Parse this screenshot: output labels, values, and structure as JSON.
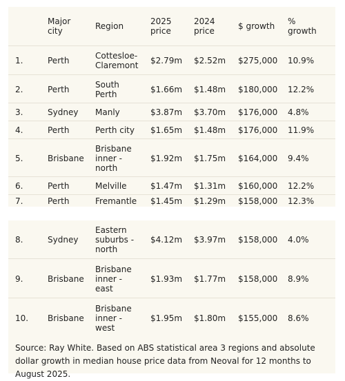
{
  "table": {
    "headers": [
      "",
      "Major\ncity",
      "Region",
      "2025\nprice",
      "2024\nprice",
      "$ growth",
      "%\ngrowth"
    ],
    "rows": [
      [
        "1.",
        "Perth",
        "Cottesloe-\nClaremont",
        "$2.79m",
        "$2.52m",
        "$275,000",
        "10.9%"
      ],
      [
        "2.",
        "Perth",
        "South\nPerth",
        "$1.66m",
        "$1.48m",
        "$180,000",
        "12.2%"
      ],
      [
        "3.",
        "Sydney",
        "Manly",
        "$3.87m",
        "$3.70m",
        "$176,000",
        "4.8%"
      ],
      [
        "4.",
        "Perth",
        "Perth city",
        "$1.65m",
        "$1.48m",
        "$176,000",
        "11.9%"
      ],
      [
        "5.",
        "Brisbane",
        "Brisbane\ninner -\nnorth",
        "$1.92m",
        "$1.75m",
        "$164,000",
        "9.4%"
      ],
      [
        "6.",
        "Perth",
        "Melville",
        "$1.47m",
        "$1.31m",
        "$160,000",
        "12.2%"
      ],
      [
        "7.",
        "Perth",
        "Fremantle",
        "$1.45m",
        "$1.29m",
        "$158,000",
        "12.3%"
      ],
      [
        "8.",
        "Sydney",
        "Eastern\nsuburbs -\nnorth",
        "$4.12m",
        "$3.97m",
        "$158,000",
        "4.0%"
      ],
      [
        "9.",
        "Brisbane",
        "Brisbane\ninner -\neast",
        "$1.93m",
        "$1.77m",
        "$158,000",
        "8.9%"
      ],
      [
        "10.",
        "Brisbane",
        "Brisbane\ninner -\nwest",
        "$1.95m",
        "$1.80m",
        "$155,000",
        "8.6%"
      ]
    ]
  },
  "source_note": "Source: Ray White. Based on ABS statistical area 3 regions and absolute dollar growth in median house price data from Neoval for 12 months to August 2025.",
  "colors": {
    "panel_background": "#faf8f0",
    "row_divider": "#e6e2d6",
    "text": "#222222"
  }
}
